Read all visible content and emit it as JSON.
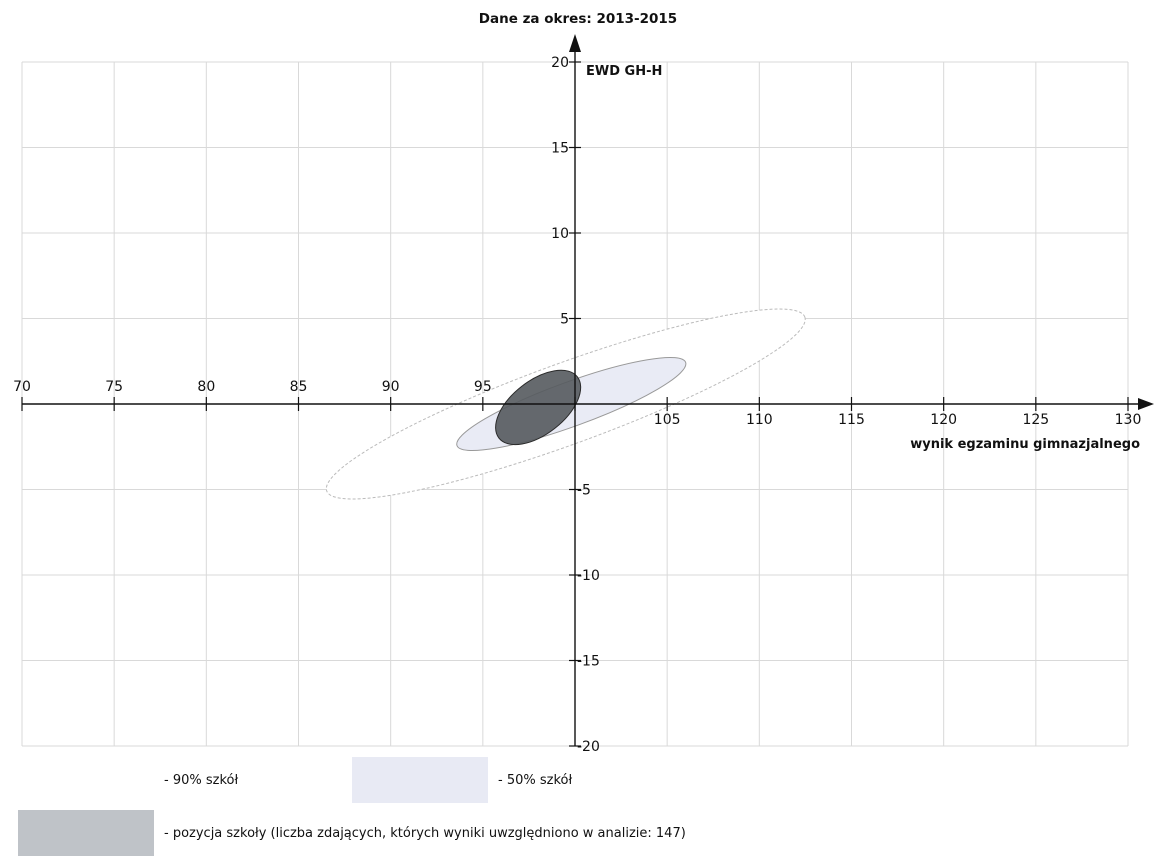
{
  "chart_data": {
    "type": "scatter",
    "title": "Dane za okres: 2013-2015",
    "xlabel": "wynik egzaminu gimnazjalnego",
    "ylabel": "EWD GH-H",
    "xlim": [
      70,
      130
    ],
    "ylim": [
      -20,
      20
    ],
    "x_ticks": [
      70,
      75,
      80,
      85,
      90,
      95,
      100,
      105,
      110,
      115,
      120,
      125,
      130
    ],
    "x_tick_labels": [
      "70",
      "75",
      "80",
      "85",
      "90",
      "95",
      "",
      "105",
      "110",
      "115",
      "120",
      "125",
      "130"
    ],
    "y_ticks": [
      -20,
      -15,
      -10,
      -5,
      5,
      10,
      15,
      20
    ],
    "grid": true,
    "x_axis_crosses_y_at": 0,
    "y_axis_crosses_x_at": 100,
    "regions": [
      {
        "name": "90% szkół",
        "center": [
          99.5,
          0
        ],
        "rx": 13.8,
        "ry": 2.2,
        "angle_deg": 20,
        "fill": "#ffffff",
        "stroke": "#bbbbbb",
        "stroke_dasharray": "3,2",
        "opacity": 1
      },
      {
        "name": "50% szkół",
        "center": [
          99.8,
          0
        ],
        "rx": 6.6,
        "ry": 1.2,
        "angle_deg": 20,
        "fill": "#e9ebf5",
        "stroke": "#999999",
        "stroke_dasharray": "",
        "opacity": 1
      },
      {
        "name": "pozycja szkoły",
        "center": [
          98.0,
          -0.2
        ],
        "rx": 2.7,
        "ry": 1.45,
        "angle_deg": 38,
        "fill": "#555a5e",
        "stroke": "#2a2a2a",
        "stroke_dasharray": "",
        "opacity": 0.9
      }
    ]
  },
  "legend": {
    "item_90": "- 90% szkół",
    "item_50": "- 50% szkół",
    "item_school": "- pozycja szkoły (liczba zdających, których wyniki uwzględniono w analizie: 147)",
    "color_50": "#e8eaf4",
    "color_school": "#bfc3c8"
  }
}
